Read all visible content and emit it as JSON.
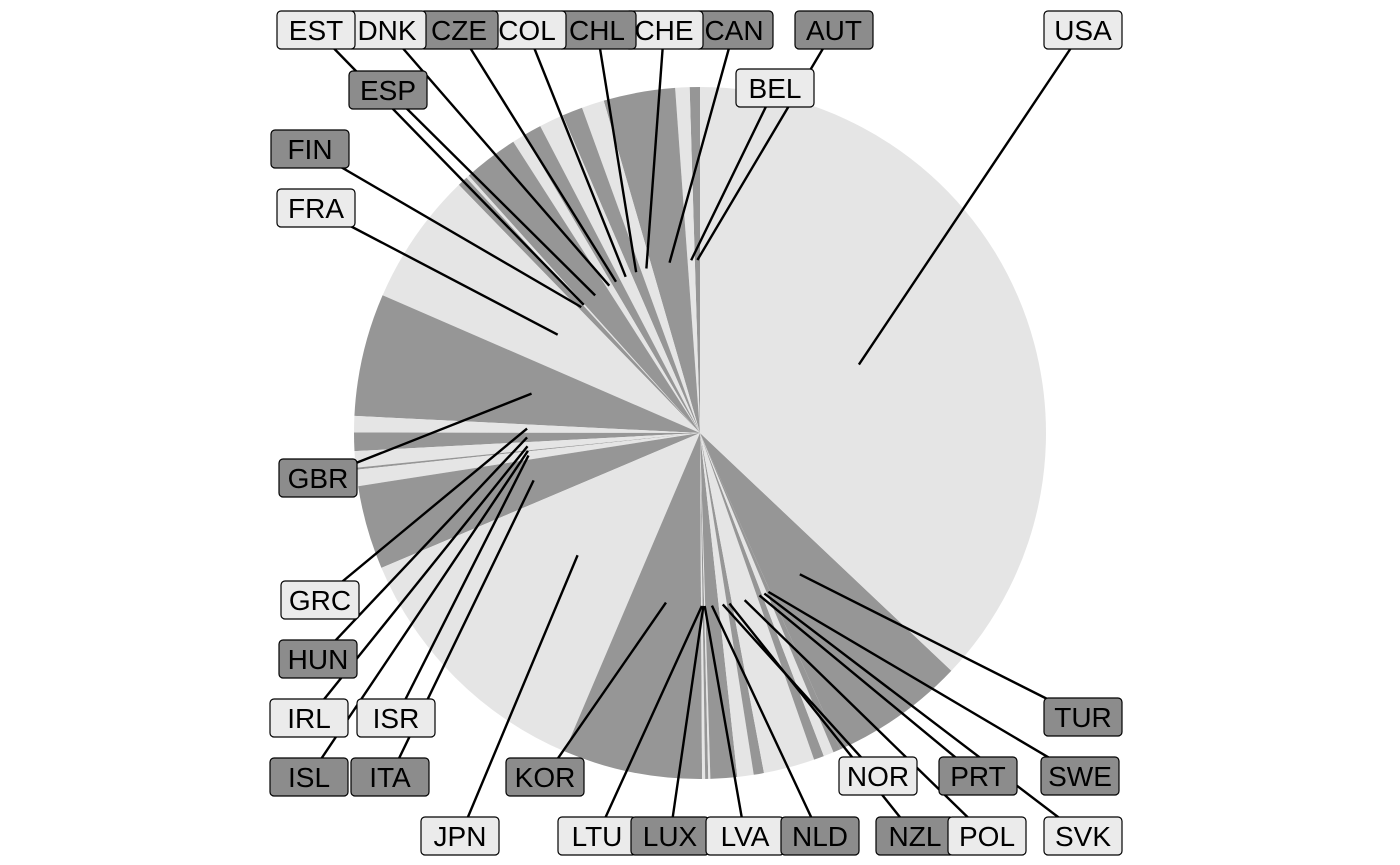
{
  "chart_data": {
    "type": "pie",
    "title": "",
    "legend": "none",
    "colors": {
      "light": "#e5e5e5",
      "dark": "#969696",
      "label_light": "#ebebeb",
      "label_dark": "#8c8c8c"
    },
    "slices": [
      {
        "label": "AUT",
        "value": 0.5,
        "shade": "dark"
      },
      {
        "label": "BEL",
        "value": 0.7,
        "shade": "light"
      },
      {
        "label": "CAN",
        "value": 3.5,
        "shade": "dark"
      },
      {
        "label": "CHE",
        "value": 1.1,
        "shade": "light"
      },
      {
        "label": "CHL",
        "value": 1.0,
        "shade": "dark"
      },
      {
        "label": "COL",
        "value": 1.2,
        "shade": "light"
      },
      {
        "label": "CZE",
        "value": 0.9,
        "shade": "dark"
      },
      {
        "label": "DNK",
        "value": 0.6,
        "shade": "light"
      },
      {
        "label": "ESP",
        "value": 2.7,
        "shade": "dark"
      },
      {
        "label": "EST",
        "value": 0.15,
        "shade": "light"
      },
      {
        "label": "FIN",
        "value": 0.5,
        "shade": "dark"
      },
      {
        "label": "FRA",
        "value": 6.5,
        "shade": "light"
      },
      {
        "label": "GBR",
        "value": 6.0,
        "shade": "dark"
      },
      {
        "label": "GRC",
        "value": 0.8,
        "shade": "light"
      },
      {
        "label": "HUN",
        "value": 0.9,
        "shade": "dark"
      },
      {
        "label": "IRL",
        "value": 0.8,
        "shade": "light"
      },
      {
        "label": "ISL",
        "value": 0.1,
        "shade": "dark"
      },
      {
        "label": "ISR",
        "value": 0.8,
        "shade": "light"
      },
      {
        "label": "ITA",
        "value": 4.1,
        "shade": "dark"
      },
      {
        "label": "JPN",
        "value": 12.8,
        "shade": "light"
      },
      {
        "label": "KOR",
        "value": 6.8,
        "shade": "dark"
      },
      {
        "label": "LTU",
        "value": 0.15,
        "shade": "light"
      },
      {
        "label": "LUX",
        "value": 0.15,
        "shade": "dark"
      },
      {
        "label": "LVA",
        "value": 0.1,
        "shade": "light"
      },
      {
        "label": "NLD",
        "value": 1.3,
        "shade": "dark"
      },
      {
        "label": "NOR",
        "value": 0.8,
        "shade": "light"
      },
      {
        "label": "NZL",
        "value": 0.5,
        "shade": "dark"
      },
      {
        "label": "POL",
        "value": 2.5,
        "shade": "light"
      },
      {
        "label": "PRT",
        "value": 0.5,
        "shade": "dark"
      },
      {
        "label": "SVK",
        "value": 0.5,
        "shade": "light"
      },
      {
        "label": "SWE",
        "value": 0.35,
        "shade": "dark"
      },
      {
        "label": "TUR",
        "value": 6.6,
        "shade": "dark"
      },
      {
        "label": "USA",
        "value": 38.8,
        "shade": "light"
      }
    ]
  }
}
